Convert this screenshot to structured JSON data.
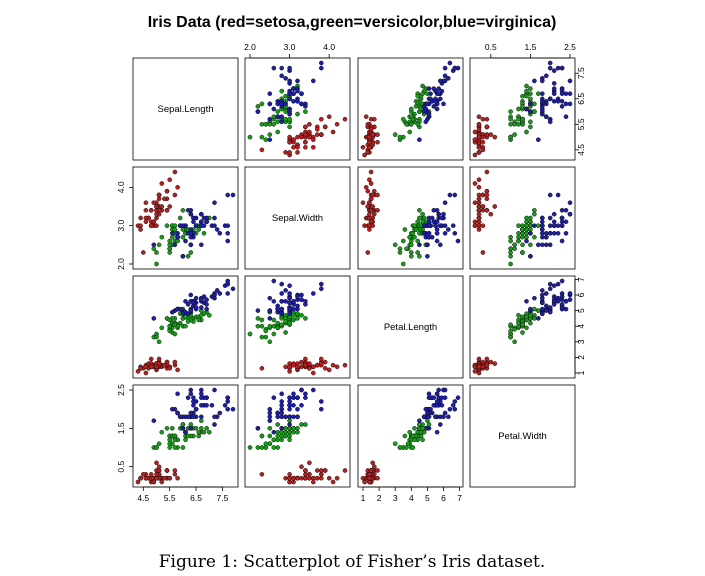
{
  "title": "Iris Data (red=setosa,green=versicolor,blue=virginica)",
  "caption": "Figure 1: Scatterplot of Fisher’s Iris dataset.",
  "colors": {
    "setosa": "#b22222",
    "versicolor": "#1a9a1a",
    "virginica": "#1f1fa0",
    "outline": "#000000"
  },
  "chart_data": {
    "type": "scatter",
    "title": "Iris Data (red=setosa,green=versicolor,blue=virginica)",
    "variables": [
      "Sepal.Length",
      "Sepal.Width",
      "Petal.Length",
      "Petal.Width"
    ],
    "ranges": [
      [
        4.3,
        7.9
      ],
      [
        2.0,
        4.4
      ],
      [
        1.0,
        6.9
      ],
      [
        0.1,
        2.5
      ]
    ],
    "ticks": [
      {
        "values": [
          4.5,
          5.5,
          6.5,
          7.5
        ],
        "labels": [
          "4.5",
          "5.5",
          "6.5",
          "7.5"
        ]
      },
      {
        "values": [
          2.0,
          3.0,
          4.0
        ],
        "labels": [
          "2.0",
          "3.0",
          "4.0"
        ]
      },
      {
        "values": [
          1,
          2,
          3,
          4,
          5,
          6,
          7
        ],
        "labels": [
          "1",
          "2",
          "3",
          "4",
          "5",
          "6",
          "7"
        ]
      },
      {
        "values": [
          0.5,
          1.5,
          2.5
        ],
        "labels": [
          "0.5",
          "1.5",
          "2.5"
        ]
      }
    ],
    "grid": false,
    "series": [
      {
        "class": "setosa",
        "points": [
          [
            5.1,
            3.5,
            1.4,
            0.2
          ],
          [
            4.9,
            3.0,
            1.4,
            0.2
          ],
          [
            4.7,
            3.2,
            1.3,
            0.2
          ],
          [
            4.6,
            3.1,
            1.5,
            0.2
          ],
          [
            5.0,
            3.6,
            1.4,
            0.2
          ],
          [
            5.4,
            3.9,
            1.7,
            0.4
          ],
          [
            4.6,
            3.4,
            1.4,
            0.3
          ],
          [
            5.0,
            3.4,
            1.5,
            0.2
          ],
          [
            4.4,
            2.9,
            1.4,
            0.2
          ],
          [
            4.9,
            3.1,
            1.5,
            0.1
          ],
          [
            5.4,
            3.7,
            1.5,
            0.2
          ],
          [
            4.8,
            3.4,
            1.6,
            0.2
          ],
          [
            4.8,
            3.0,
            1.4,
            0.1
          ],
          [
            4.3,
            3.0,
            1.1,
            0.1
          ],
          [
            5.8,
            4.0,
            1.2,
            0.2
          ],
          [
            5.7,
            4.4,
            1.5,
            0.4
          ],
          [
            5.4,
            3.9,
            1.3,
            0.4
          ],
          [
            5.1,
            3.5,
            1.4,
            0.3
          ],
          [
            5.7,
            3.8,
            1.7,
            0.3
          ],
          [
            5.1,
            3.8,
            1.5,
            0.3
          ],
          [
            5.4,
            3.4,
            1.7,
            0.2
          ],
          [
            5.1,
            3.7,
            1.5,
            0.4
          ],
          [
            4.6,
            3.6,
            1.0,
            0.2
          ],
          [
            5.1,
            3.3,
            1.7,
            0.5
          ],
          [
            4.8,
            3.4,
            1.9,
            0.2
          ],
          [
            5.0,
            3.0,
            1.6,
            0.2
          ],
          [
            5.0,
            3.4,
            1.6,
            0.4
          ],
          [
            5.2,
            3.5,
            1.5,
            0.2
          ],
          [
            5.2,
            3.4,
            1.4,
            0.2
          ],
          [
            4.7,
            3.2,
            1.6,
            0.2
          ],
          [
            4.8,
            3.1,
            1.6,
            0.2
          ],
          [
            5.4,
            3.4,
            1.5,
            0.4
          ],
          [
            5.2,
            4.1,
            1.5,
            0.1
          ],
          [
            5.5,
            4.2,
            1.4,
            0.2
          ],
          [
            4.9,
            3.1,
            1.5,
            0.2
          ],
          [
            5.0,
            3.2,
            1.2,
            0.2
          ],
          [
            5.5,
            3.5,
            1.3,
            0.2
          ],
          [
            4.9,
            3.6,
            1.4,
            0.1
          ],
          [
            4.4,
            3.0,
            1.3,
            0.2
          ],
          [
            5.1,
            3.4,
            1.5,
            0.2
          ],
          [
            5.0,
            3.5,
            1.3,
            0.3
          ],
          [
            4.5,
            2.3,
            1.3,
            0.3
          ],
          [
            4.4,
            3.2,
            1.3,
            0.2
          ],
          [
            5.0,
            3.5,
            1.6,
            0.6
          ],
          [
            5.1,
            3.8,
            1.9,
            0.4
          ],
          [
            4.8,
            3.0,
            1.4,
            0.3
          ],
          [
            5.1,
            3.8,
            1.6,
            0.2
          ],
          [
            4.6,
            3.2,
            1.4,
            0.2
          ],
          [
            5.3,
            3.7,
            1.5,
            0.2
          ],
          [
            5.0,
            3.3,
            1.4,
            0.2
          ]
        ]
      },
      {
        "class": "versicolor",
        "points": [
          [
            7.0,
            3.2,
            4.7,
            1.4
          ],
          [
            6.4,
            3.2,
            4.5,
            1.5
          ],
          [
            6.9,
            3.1,
            4.9,
            1.5
          ],
          [
            5.5,
            2.3,
            4.0,
            1.3
          ],
          [
            6.5,
            2.8,
            4.6,
            1.5
          ],
          [
            5.7,
            2.8,
            4.5,
            1.3
          ],
          [
            6.3,
            3.3,
            4.7,
            1.6
          ],
          [
            4.9,
            2.4,
            3.3,
            1.0
          ],
          [
            6.6,
            2.9,
            4.6,
            1.3
          ],
          [
            5.2,
            2.7,
            3.9,
            1.4
          ],
          [
            5.0,
            2.0,
            3.5,
            1.0
          ],
          [
            5.9,
            3.0,
            4.2,
            1.5
          ],
          [
            6.0,
            2.2,
            4.0,
            1.0
          ],
          [
            6.1,
            2.9,
            4.7,
            1.4
          ],
          [
            5.6,
            2.9,
            3.6,
            1.3
          ],
          [
            6.7,
            3.1,
            4.4,
            1.4
          ],
          [
            5.6,
            3.0,
            4.5,
            1.5
          ],
          [
            5.8,
            2.7,
            4.1,
            1.0
          ],
          [
            6.2,
            2.2,
            4.5,
            1.5
          ],
          [
            5.6,
            2.5,
            3.9,
            1.1
          ],
          [
            5.9,
            3.2,
            4.8,
            1.8
          ],
          [
            6.1,
            2.8,
            4.0,
            1.3
          ],
          [
            6.3,
            2.5,
            4.9,
            1.5
          ],
          [
            6.1,
            2.8,
            4.7,
            1.2
          ],
          [
            6.4,
            2.9,
            4.3,
            1.3
          ],
          [
            6.6,
            3.0,
            4.4,
            1.4
          ],
          [
            6.8,
            2.8,
            4.8,
            1.4
          ],
          [
            6.7,
            3.0,
            5.0,
            1.7
          ],
          [
            6.0,
            2.9,
            4.5,
            1.5
          ],
          [
            5.7,
            2.6,
            3.5,
            1.0
          ],
          [
            5.5,
            2.4,
            3.8,
            1.1
          ],
          [
            5.5,
            2.4,
            3.7,
            1.0
          ],
          [
            5.8,
            2.7,
            3.9,
            1.2
          ],
          [
            6.0,
            2.7,
            5.1,
            1.6
          ],
          [
            5.4,
            3.0,
            4.5,
            1.5
          ],
          [
            6.0,
            3.4,
            4.5,
            1.6
          ],
          [
            6.7,
            3.1,
            4.7,
            1.5
          ],
          [
            6.3,
            2.3,
            4.4,
            1.3
          ],
          [
            5.6,
            3.0,
            4.1,
            1.3
          ],
          [
            5.5,
            2.5,
            4.0,
            1.3
          ],
          [
            5.5,
            2.6,
            4.4,
            1.2
          ],
          [
            6.1,
            3.0,
            4.6,
            1.4
          ],
          [
            5.8,
            2.6,
            4.0,
            1.2
          ],
          [
            5.0,
            2.3,
            3.3,
            1.0
          ],
          [
            5.6,
            2.7,
            4.2,
            1.3
          ],
          [
            5.7,
            3.0,
            4.2,
            1.2
          ],
          [
            5.7,
            2.9,
            4.2,
            1.3
          ],
          [
            6.2,
            2.9,
            4.3,
            1.3
          ],
          [
            5.1,
            2.5,
            3.0,
            1.1
          ],
          [
            5.7,
            2.8,
            4.1,
            1.3
          ]
        ]
      },
      {
        "class": "virginica",
        "points": [
          [
            6.3,
            3.3,
            6.0,
            2.5
          ],
          [
            5.8,
            2.7,
            5.1,
            1.9
          ],
          [
            7.1,
            3.0,
            5.9,
            2.1
          ],
          [
            6.3,
            2.9,
            5.6,
            1.8
          ],
          [
            6.5,
            3.0,
            5.8,
            2.2
          ],
          [
            7.6,
            3.0,
            6.6,
            2.1
          ],
          [
            4.9,
            2.5,
            4.5,
            1.7
          ],
          [
            7.3,
            2.9,
            6.3,
            1.8
          ],
          [
            6.7,
            2.5,
            5.8,
            1.8
          ],
          [
            7.2,
            3.6,
            6.1,
            2.5
          ],
          [
            6.5,
            3.2,
            5.1,
            2.0
          ],
          [
            6.4,
            2.7,
            5.3,
            1.9
          ],
          [
            6.8,
            3.0,
            5.5,
            2.1
          ],
          [
            5.7,
            2.5,
            5.0,
            2.0
          ],
          [
            5.8,
            2.8,
            5.1,
            2.4
          ],
          [
            6.4,
            3.2,
            5.3,
            2.3
          ],
          [
            6.5,
            3.0,
            5.5,
            1.8
          ],
          [
            7.7,
            3.8,
            6.7,
            2.2
          ],
          [
            7.7,
            2.6,
            6.9,
            2.3
          ],
          [
            6.0,
            2.2,
            5.0,
            1.5
          ],
          [
            6.9,
            3.2,
            5.7,
            2.3
          ],
          [
            5.6,
            2.8,
            4.9,
            2.0
          ],
          [
            7.7,
            2.8,
            6.7,
            2.0
          ],
          [
            6.3,
            2.7,
            4.9,
            1.8
          ],
          [
            6.7,
            3.3,
            5.7,
            2.1
          ],
          [
            7.2,
            3.2,
            6.0,
            1.8
          ],
          [
            6.2,
            2.8,
            4.8,
            1.8
          ],
          [
            6.1,
            3.0,
            4.9,
            1.8
          ],
          [
            6.4,
            2.8,
            5.6,
            2.1
          ],
          [
            7.2,
            3.0,
            5.8,
            1.6
          ],
          [
            7.4,
            2.8,
            6.1,
            1.9
          ],
          [
            7.9,
            3.8,
            6.4,
            2.0
          ],
          [
            6.4,
            2.8,
            5.6,
            2.2
          ],
          [
            6.3,
            2.8,
            5.1,
            1.5
          ],
          [
            6.1,
            2.6,
            5.6,
            1.4
          ],
          [
            7.7,
            3.0,
            6.1,
            2.3
          ],
          [
            6.3,
            3.4,
            5.6,
            2.4
          ],
          [
            6.4,
            3.1,
            5.5,
            1.8
          ],
          [
            6.0,
            3.0,
            4.8,
            1.8
          ],
          [
            6.9,
            3.1,
            5.4,
            2.1
          ],
          [
            6.7,
            3.1,
            5.6,
            2.4
          ],
          [
            6.9,
            3.1,
            5.1,
            2.3
          ],
          [
            5.8,
            2.7,
            5.1,
            1.9
          ],
          [
            6.8,
            3.2,
            5.9,
            2.3
          ],
          [
            6.7,
            3.3,
            5.7,
            2.5
          ],
          [
            6.7,
            3.0,
            5.2,
            2.3
          ],
          [
            6.3,
            2.5,
            5.0,
            1.9
          ],
          [
            6.5,
            3.0,
            5.2,
            2.0
          ],
          [
            6.2,
            3.4,
            5.4,
            2.3
          ],
          [
            5.9,
            3.0,
            5.1,
            1.8
          ]
        ]
      }
    ]
  }
}
